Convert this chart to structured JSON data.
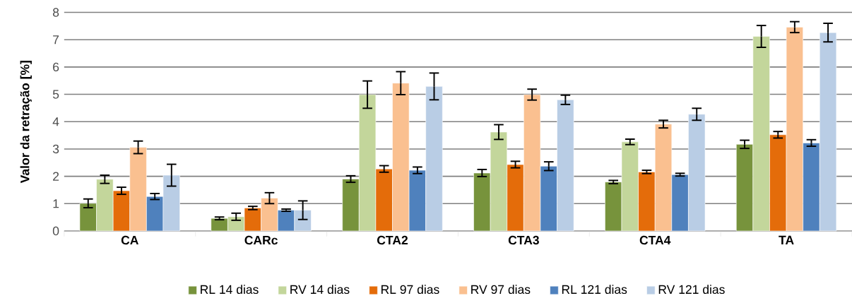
{
  "chart_data": {
    "type": "bar",
    "ylabel": "Valor da retração [%]",
    "categories": [
      "CA",
      "CARc",
      "CTA2",
      "CTA3",
      "CTA4",
      "TA"
    ],
    "ylim": [
      0,
      8
    ],
    "yticks": [
      0,
      1,
      2,
      3,
      4,
      5,
      6,
      7,
      8
    ],
    "grid": "y",
    "legend": "bottom",
    "series": [
      {
        "name": "RL 14 dias",
        "color": "#77933c",
        "values": [
          1.01,
          0.46,
          1.9,
          2.12,
          1.79,
          3.17
        ],
        "errors": [
          0.16,
          0.05,
          0.12,
          0.13,
          0.06,
          0.15
        ]
      },
      {
        "name": "RV 14 dias",
        "color": "#c3d69b",
        "values": [
          1.89,
          0.52,
          4.99,
          3.62,
          3.26,
          7.12
        ],
        "errors": [
          0.15,
          0.13,
          0.5,
          0.27,
          0.1,
          0.4
        ]
      },
      {
        "name": "RL 97 dias",
        "color": "#e46c0a",
        "values": [
          1.47,
          0.84,
          2.27,
          2.43,
          2.16,
          3.52
        ],
        "errors": [
          0.13,
          0.06,
          0.12,
          0.12,
          0.06,
          0.12
        ]
      },
      {
        "name": "RV 97 dias",
        "color": "#fac090",
        "values": [
          3.06,
          1.2,
          5.41,
          4.99,
          3.91,
          7.46
        ],
        "errors": [
          0.23,
          0.2,
          0.42,
          0.2,
          0.14,
          0.2
        ]
      },
      {
        "name": "RL 121 dias",
        "color": "#4f81bd",
        "values": [
          1.26,
          0.76,
          2.22,
          2.37,
          2.06,
          3.22
        ],
        "errors": [
          0.11,
          0.04,
          0.12,
          0.16,
          0.05,
          0.12
        ]
      },
      {
        "name": "RV 121 dias",
        "color": "#b9cde5",
        "values": [
          2.04,
          0.76,
          5.29,
          4.8,
          4.27,
          7.26
        ],
        "errors": [
          0.4,
          0.34,
          0.49,
          0.17,
          0.22,
          0.34
        ]
      }
    ]
  }
}
